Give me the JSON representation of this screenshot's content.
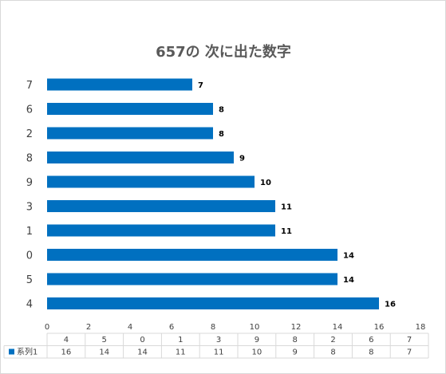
{
  "chart_data": {
    "type": "bar",
    "orientation": "horizontal",
    "title": "657の 次に出た数字",
    "categories": [
      "7",
      "6",
      "2",
      "8",
      "9",
      "3",
      "1",
      "0",
      "5",
      "4"
    ],
    "series": [
      {
        "name": "系列1",
        "values": [
          7,
          8,
          8,
          9,
          10,
          11,
          11,
          14,
          14,
          16
        ]
      }
    ],
    "xlim": [
      0,
      18
    ],
    "xticks": [
      0,
      2,
      4,
      6,
      8,
      10,
      12,
      14,
      16,
      18
    ],
    "grid": false,
    "data_labels": true,
    "data_table": {
      "header": [
        "4",
        "5",
        "0",
        "1",
        "3",
        "9",
        "8",
        "2",
        "6",
        "7"
      ],
      "legend_label": "系列1",
      "row": [
        "16",
        "14",
        "14",
        "11",
        "11",
        "10",
        "9",
        "8",
        "8",
        "7"
      ]
    },
    "colors": {
      "series": "#0070C0"
    }
  }
}
